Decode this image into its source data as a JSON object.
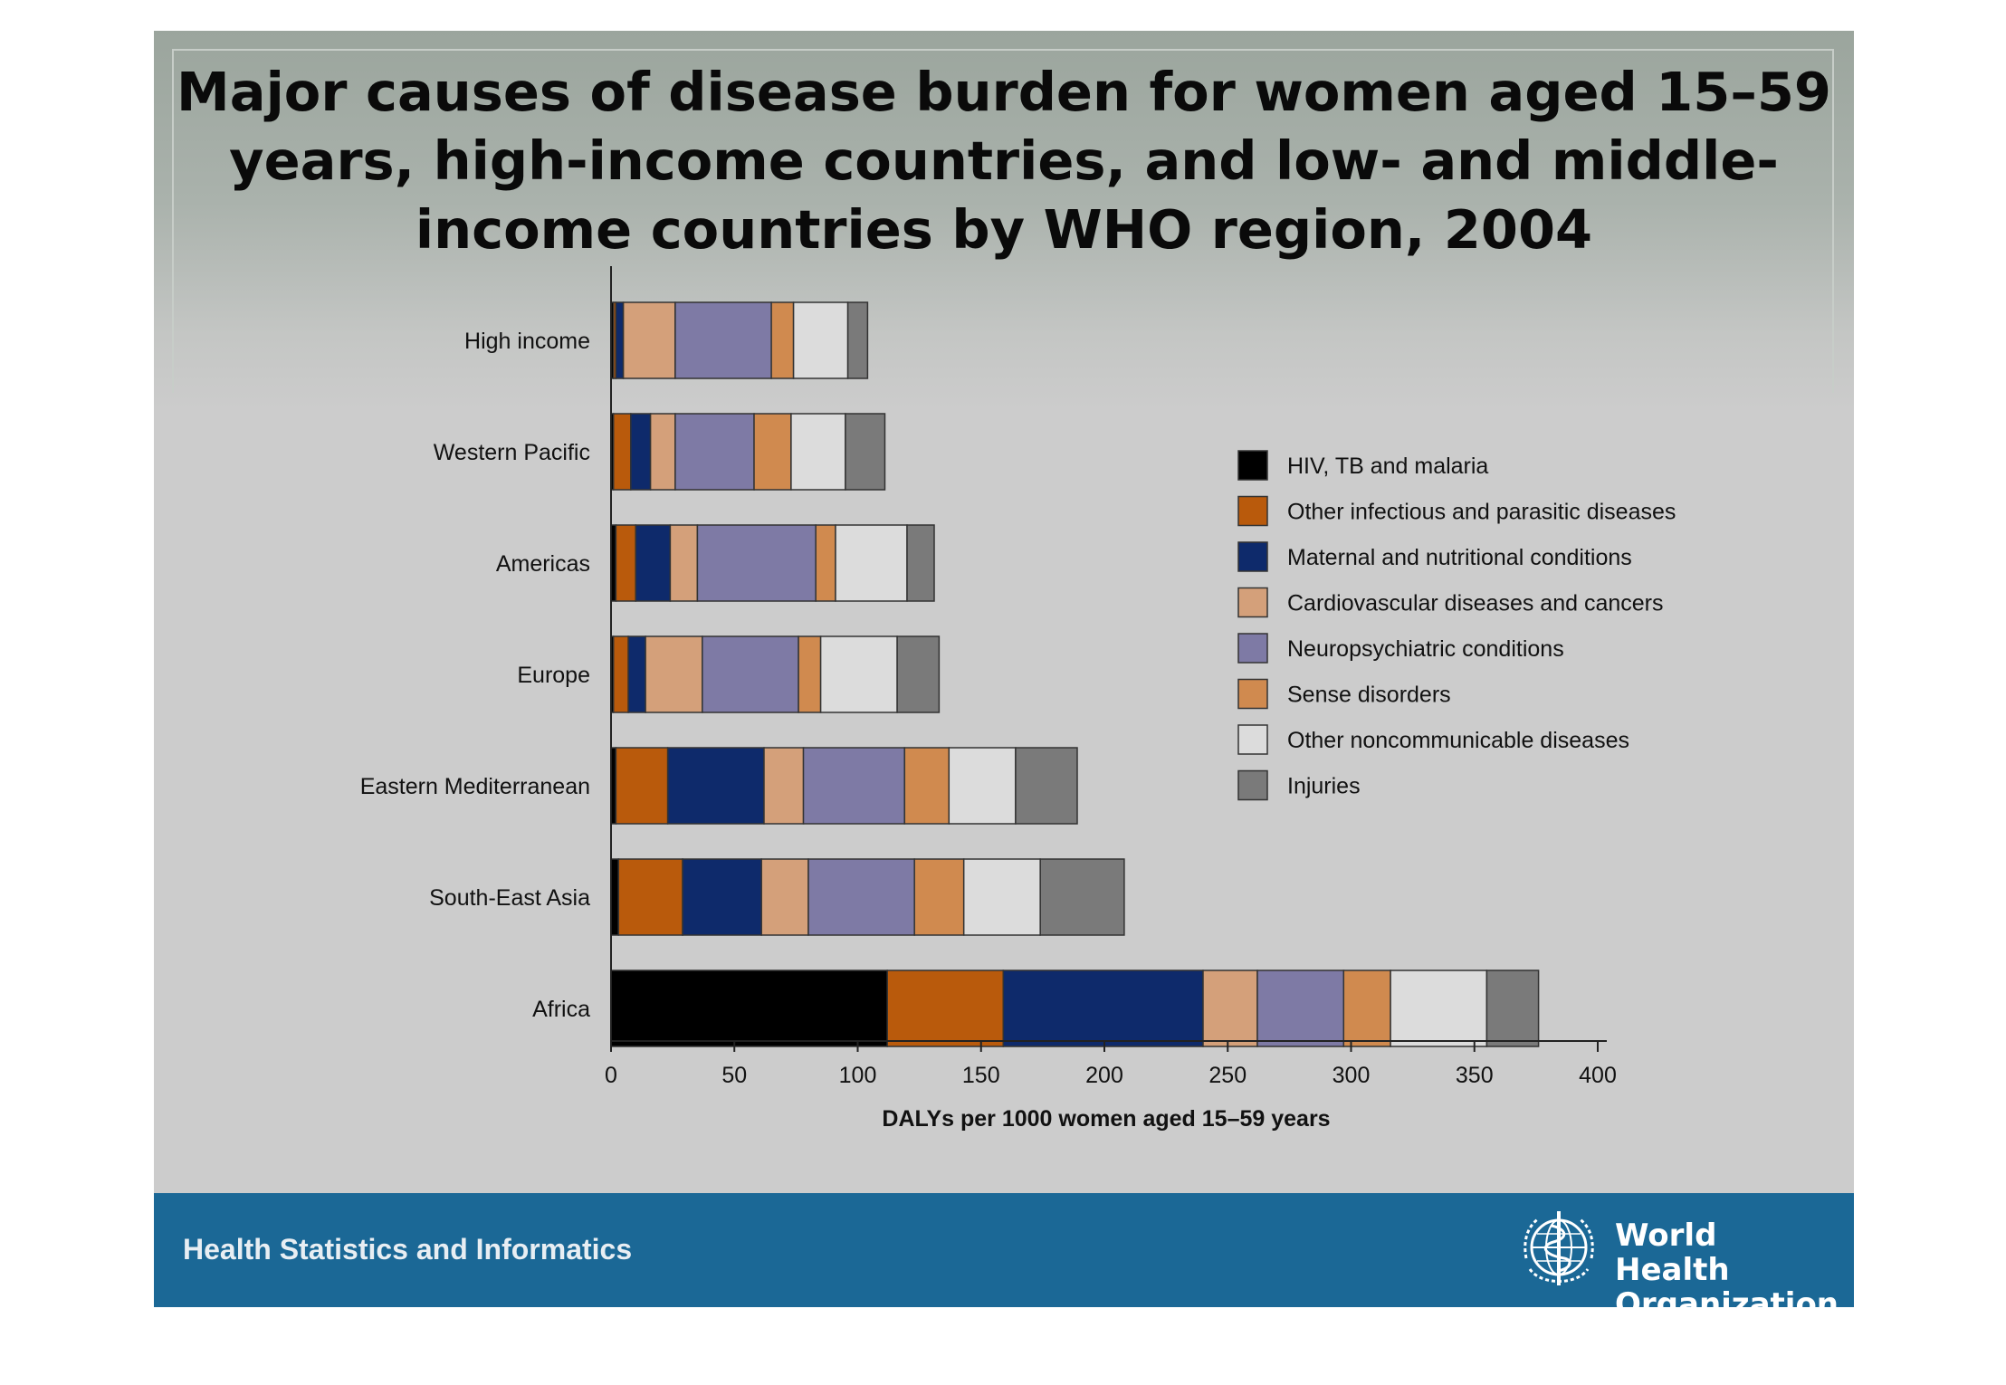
{
  "slide": {
    "title": "Major causes of disease burden for women aged 15–59 years, high-income countries, and low- and middle-income countries by WHO region, 2004",
    "footer_text": "Health Statistics and Informatics",
    "logo_text_line1": "World Health",
    "logo_text_line2": "Organization",
    "logo_icon": "who-emblem-icon"
  },
  "chart_data": {
    "type": "bar",
    "orientation": "horizontal",
    "stacked": true,
    "title": "",
    "xlabel": "DALYs per 1000 women aged 15–59 years",
    "ylabel": "",
    "xlim": [
      0,
      400
    ],
    "xticks": [
      0,
      50,
      100,
      150,
      200,
      250,
      300,
      350,
      400
    ],
    "grid": false,
    "legend_position": "right",
    "categories": [
      "High income",
      "Western Pacific",
      "Americas",
      "Europe",
      "Eastern Mediterranean",
      "South-East Asia",
      "Africa"
    ],
    "series": [
      {
        "name": "HIV, TB and malaria",
        "color": "#000000",
        "values": [
          1,
          1,
          2,
          1,
          2,
          3,
          112
        ]
      },
      {
        "name": "Other infectious and parasitic diseases",
        "color": "#b95a0c",
        "values": [
          1,
          7,
          8,
          6,
          21,
          26,
          47
        ]
      },
      {
        "name": "Maternal and nutritional conditions",
        "color": "#0e2a6b",
        "values": [
          3,
          8,
          14,
          7,
          39,
          32,
          81
        ]
      },
      {
        "name": "Cardiovascular diseases and cancers",
        "color": "#d4a07a",
        "values": [
          21,
          10,
          11,
          23,
          16,
          19,
          22
        ]
      },
      {
        "name": "Neuropsychiatric conditions",
        "color": "#7e7aa5",
        "values": [
          39,
          32,
          48,
          39,
          41,
          43,
          35
        ]
      },
      {
        "name": "Sense disorders",
        "color": "#d08a4f",
        "values": [
          9,
          15,
          8,
          9,
          18,
          20,
          19
        ]
      },
      {
        "name": "Other noncommunicable diseases",
        "color": "#dcdcdc",
        "values": [
          22,
          22,
          29,
          31,
          27,
          31,
          39
        ]
      },
      {
        "name": "Injuries",
        "color": "#7a7a7a",
        "values": [
          8,
          16,
          11,
          17,
          25,
          34,
          21
        ]
      }
    ]
  }
}
